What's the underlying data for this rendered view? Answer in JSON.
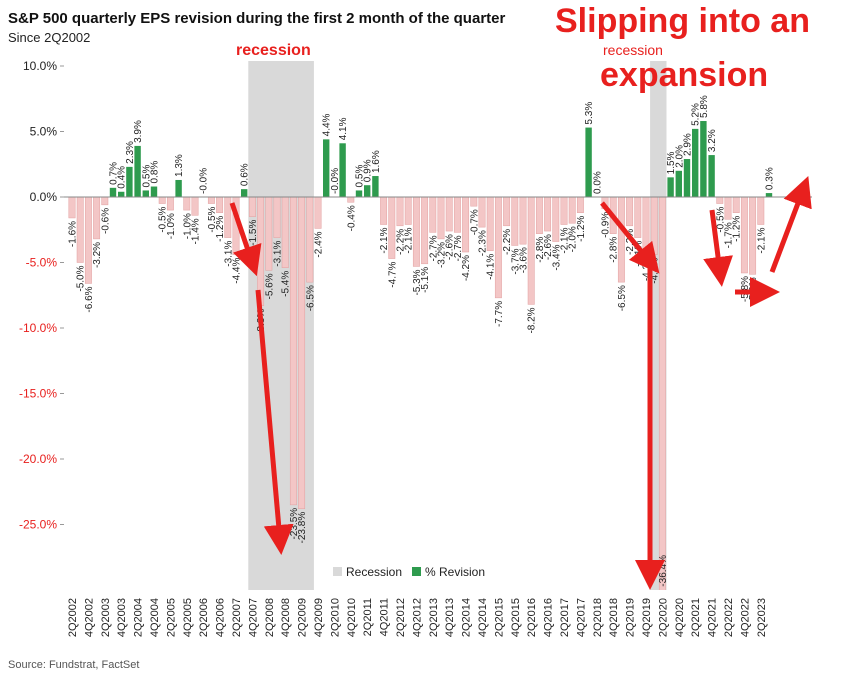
{
  "chart_data": {
    "type": "bar",
    "title": "S&P 500 quarterly EPS revision during the first 2 month of the quarter",
    "subtitle": "Since 2Q2002",
    "source": "Source: Fundstrat, FactSet",
    "annotations": [
      "recession",
      "recession",
      "Slipping into an",
      "expansion"
    ],
    "categories": [
      "2Q2002",
      null,
      "4Q2002",
      null,
      "2Q2003",
      null,
      "4Q2003",
      null,
      "2Q2004",
      null,
      "4Q2004",
      null,
      "2Q2005",
      null,
      "4Q2005",
      null,
      "2Q2006",
      null,
      "4Q2006",
      null,
      "2Q2007",
      null,
      "4Q2007",
      null,
      "2Q2008",
      null,
      "4Q2008",
      null,
      "2Q2009",
      null,
      "4Q2009",
      null,
      "2Q2010",
      null,
      "4Q2010",
      null,
      "2Q2011",
      null,
      "4Q2011",
      null,
      "2Q2012",
      null,
      "4Q2012",
      null,
      "2Q2013",
      null,
      "4Q2013",
      null,
      "2Q2014",
      null,
      "4Q2014",
      null,
      "2Q2015",
      null,
      "4Q2015",
      null,
      "2Q2016",
      null,
      "4Q2016",
      null,
      "2Q2017",
      null,
      "4Q2017",
      null,
      "2Q2018",
      null,
      "4Q2018",
      null,
      "2Q2019",
      null,
      "4Q2019",
      null,
      "2Q2020",
      null,
      "4Q2020",
      null,
      "2Q2021",
      null,
      "4Q2021",
      null,
      "2Q2022",
      null,
      "4Q2022",
      null,
      "2Q2023",
      null
    ],
    "series": [
      {
        "name": "% Revision",
        "positive_color": "#2e9b4e",
        "negative_color": "#f3c6c6",
        "values": [
          -1.6,
          -5.0,
          -6.6,
          -3.2,
          -0.6,
          0.7,
          0.4,
          2.3,
          3.9,
          0.5,
          0.8,
          -0.5,
          -1.0,
          1.3,
          -1.0,
          -1.4,
          0,
          -0.5,
          -1.2,
          -3.1,
          -4.4,
          0.6,
          -1.5,
          -8.3,
          -5.6,
          -3.1,
          -5.4,
          -23.5,
          -23.8,
          -6.5,
          -2.4,
          4.4,
          0,
          4.1,
          -0.4,
          0.5,
          0.9,
          1.6,
          -2.1,
          -4.7,
          -2.2,
          -2.1,
          -5.3,
          -5.1,
          -2.7,
          -3.2,
          -2.6,
          -2.7,
          -4.2,
          -0.7,
          -2.3,
          -4.1,
          -7.7,
          -2.2,
          -3.7,
          -3.6,
          -8.2,
          -2.8,
          -2.6,
          -3.4,
          -2.1,
          -2.0,
          -1.2,
          5.3,
          0.0,
          -0.9,
          -2.8,
          -6.5,
          -2.2,
          -3.1,
          -4.2,
          -4.4,
          -36.4,
          1.5,
          2.0,
          2.9,
          5.2,
          5.8,
          3.2,
          -0.5,
          -1.7,
          -1.2,
          -5.8,
          -5.9,
          -2.1,
          0.3
        ],
        "value_labels": [
          "-1.6%",
          "-5.0%",
          "-6.6%",
          "-3.2%",
          "-0.6%",
          "0.7%",
          "0.4%",
          "2.3%",
          "3.9%",
          "0.5%",
          "0.8%",
          "-0.5%",
          "-1.0%",
          "1.3%",
          "-1.0%",
          "-1.4%",
          "-0.0%",
          "-0.5%",
          "-1.2%",
          "-3.1%",
          "-4.4%",
          "0.6%",
          "-1.5%",
          "-8.3%",
          "-5.6%",
          "-3.1%",
          "-5.4%",
          "-23.5%",
          "-23.8%",
          "-6.5%",
          "-2.4%",
          "4.4%",
          "-0.0%",
          "4.1%",
          "-0.4%",
          "0.5%",
          "0.9%",
          "1.6%",
          "-2.1%",
          "-4.7%",
          "-2.2%",
          "-2.1%",
          "-5.3%",
          "-5.1%",
          "-2.7%",
          "-3.2%",
          "-2.6%",
          "-2.7%",
          "-4.2%",
          "-0.7%",
          "-2.3%",
          "-4.1%",
          "-7.7%",
          "-2.2%",
          "-3.7%",
          "-3.6%",
          "-8.2%",
          "-2.8%",
          "-2.6%",
          "-3.4%",
          "-2.1%",
          "-2.0%",
          "-1.2%",
          "5.3%",
          "0.0%",
          "-0.9%",
          "-2.8%",
          "-6.5%",
          "-2.2%",
          "-3.1%",
          "-4.2%",
          "-4.4%",
          "-36.4%",
          "1.5%",
          "2.0%",
          "2.9%",
          "5.2%",
          "5.8%",
          "3.2%",
          "-0.5%",
          "-1.7%",
          "-1.2%",
          "-5.8%",
          "-5.9%",
          "-2.1%",
          "0.3%"
        ]
      }
    ],
    "recession": {
      "name": "Recession",
      "color": "#d9d9d9",
      "periods": [
        [
          22,
          29
        ],
        [
          71,
          72
        ]
      ]
    },
    "ylim": [
      -30,
      10
    ],
    "yticks": [
      {
        "value": 10,
        "label": "10.0%"
      },
      {
        "value": 5,
        "label": "5.0%"
      },
      {
        "value": 0,
        "label": "0.0%"
      },
      {
        "value": -5,
        "label": "-5.0%"
      },
      {
        "value": -10,
        "label": "-10.0%"
      },
      {
        "value": -15,
        "label": "-15.0%"
      },
      {
        "value": -20,
        "label": "-20.0%"
      },
      {
        "value": -25,
        "label": "-25.0%"
      }
    ],
    "grid": false
  }
}
